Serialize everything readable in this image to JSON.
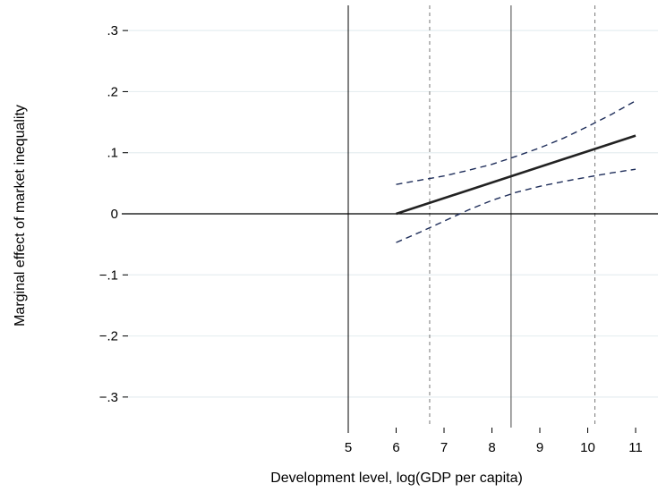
{
  "chart_data": {
    "type": "line",
    "title": "",
    "xlabel": "Development level, log(GDP per capita)",
    "ylabel": "Marginal effect of market inequality",
    "xlim": [
      5,
      11
    ],
    "ylim": [
      -0.35,
      0.35
    ],
    "x_ticks": [
      5,
      6,
      7,
      8,
      9,
      10,
      11
    ],
    "y_ticks": [
      -0.3,
      -0.2,
      -0.1,
      0,
      0.1,
      0.2,
      0.3
    ],
    "x_tick_labels": [
      "5",
      "6",
      "7",
      "8",
      "9",
      "10",
      "11"
    ],
    "y_tick_labels": [
      "−.3",
      "−.2",
      "−.1",
      "0",
      ".1",
      ".2",
      ".3"
    ],
    "grid": true,
    "series": [
      {
        "role": "estimate",
        "style": "solid",
        "color": "#222222",
        "x": [
          6,
          11
        ],
        "y": [
          0.0,
          0.128
        ]
      },
      {
        "role": "upper-ci",
        "style": "dashed",
        "color": "#1f2e5a",
        "x": [
          6,
          6.5,
          7,
          7.5,
          8,
          8.5,
          9,
          9.5,
          10,
          10.5,
          11
        ],
        "y": [
          0.048,
          0.055,
          0.062,
          0.071,
          0.081,
          0.094,
          0.108,
          0.124,
          0.143,
          0.163,
          0.185
        ]
      },
      {
        "role": "lower-ci",
        "style": "dashed",
        "color": "#1f2e5a",
        "x": [
          6,
          6.5,
          7,
          7.5,
          8,
          8.5,
          9,
          9.5,
          10,
          10.5,
          11
        ],
        "y": [
          -0.047,
          -0.03,
          -0.012,
          0.006,
          0.022,
          0.035,
          0.045,
          0.053,
          0.06,
          0.067,
          0.073
        ]
      }
    ],
    "reference_lines": [
      {
        "axis": "x",
        "value": 5,
        "style": "solid",
        "color": "#000000"
      },
      {
        "axis": "x",
        "value": 8.4,
        "style": "solid",
        "color": "#444444"
      },
      {
        "axis": "x",
        "value": 6.7,
        "style": "dashed",
        "color": "#777777"
      },
      {
        "axis": "x",
        "value": 10.15,
        "style": "dashed",
        "color": "#777777"
      },
      {
        "axis": "y",
        "value": 0,
        "style": "solid",
        "color": "#000000"
      }
    ],
    "colors": {
      "grid": "#e6eef0",
      "background": "#ffffff"
    }
  }
}
